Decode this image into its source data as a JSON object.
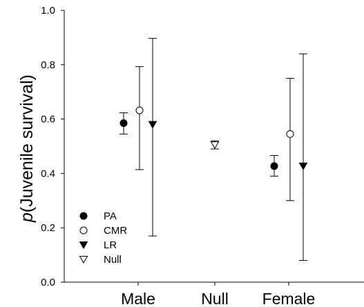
{
  "chart_data": {
    "type": "scatter",
    "ylabel_italic": "p",
    "ylabel_rest": "(Juvenile survival)",
    "xlabel": "",
    "ylim": [
      0,
      1.0
    ],
    "yticks": [
      "0.0",
      "0.2",
      "0.4",
      "0.6",
      "0.8",
      "1.0"
    ],
    "categories": [
      "Male",
      "Null",
      "Female"
    ],
    "series": [
      {
        "name": "PA",
        "marker": "filled-circle",
        "points": [
          {
            "category": "Male",
            "y": 0.585,
            "lo": 0.545,
            "hi": 0.623
          },
          {
            "category": "Female",
            "y": 0.427,
            "lo": 0.39,
            "hi": 0.466
          }
        ]
      },
      {
        "name": "CMR",
        "marker": "open-circle",
        "points": [
          {
            "category": "Male",
            "y": 0.632,
            "lo": 0.414,
            "hi": 0.793
          },
          {
            "category": "Female",
            "y": 0.545,
            "lo": 0.3,
            "hi": 0.75
          }
        ]
      },
      {
        "name": "LR",
        "marker": "filled-triangle-down",
        "points": [
          {
            "category": "Male",
            "y": 0.58,
            "lo": 0.17,
            "hi": 0.897
          },
          {
            "category": "Female",
            "y": 0.427,
            "lo": 0.08,
            "hi": 0.84
          }
        ]
      },
      {
        "name": "Null",
        "marker": "open-triangle-down",
        "points": [
          {
            "category": "Null",
            "y": 0.505,
            "lo": 0.49,
            "hi": 0.52
          }
        ]
      }
    ],
    "legend_position": "bottom-left"
  }
}
